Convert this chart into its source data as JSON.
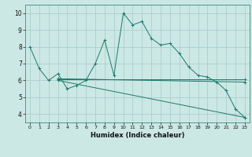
{
  "xlabel": "Humidex (Indice chaleur)",
  "bg_color": "#cce8e4",
  "grid_color": "#aacfcb",
  "line_color": "#1a7a6e",
  "xlim": [
    -0.5,
    23.5
  ],
  "ylim": [
    3.5,
    10.5
  ],
  "yticks": [
    4,
    5,
    6,
    7,
    8,
    9,
    10
  ],
  "xticks": [
    0,
    1,
    2,
    3,
    4,
    5,
    6,
    7,
    8,
    9,
    10,
    11,
    12,
    13,
    14,
    15,
    16,
    17,
    18,
    19,
    20,
    21,
    22,
    23
  ],
  "line1_x": [
    0,
    1,
    2,
    3,
    4,
    5,
    6,
    7,
    8,
    9,
    10,
    11,
    12,
    13,
    14,
    15,
    16,
    17,
    18,
    19,
    20,
    21,
    22,
    23
  ],
  "line1_y": [
    8.0,
    6.7,
    6.0,
    6.4,
    5.5,
    5.7,
    6.0,
    7.0,
    8.4,
    6.3,
    10.0,
    9.3,
    9.5,
    8.5,
    8.1,
    8.2,
    7.6,
    6.8,
    6.3,
    6.2,
    5.9,
    5.4,
    4.3,
    3.8
  ],
  "line2_x": [
    3,
    23
  ],
  "line2_y": [
    6.1,
    5.9
  ],
  "line3_x": [
    3,
    23
  ],
  "line3_y": [
    6.0,
    3.8
  ],
  "line4_x": [
    3,
    23
  ],
  "line4_y": [
    6.05,
    6.05
  ]
}
